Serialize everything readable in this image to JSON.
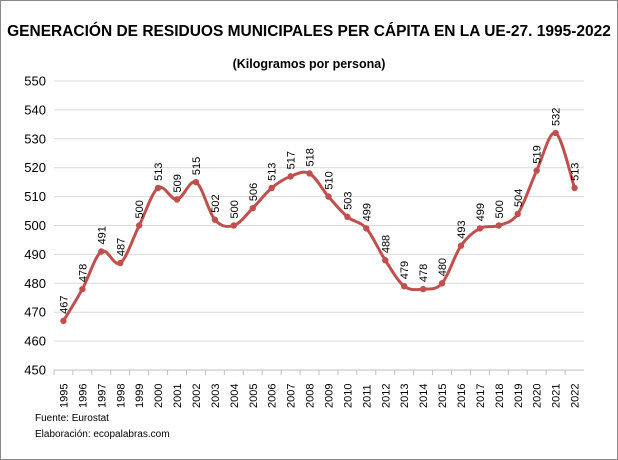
{
  "chart_data": {
    "type": "line",
    "title": "GENERACIÓN DE RESIDUOS MUNICIPALES PER CÁPITA EN LA UE-27. 1995-2022",
    "subtitle": "(Kilogramos por persona)",
    "categories": [
      "1995",
      "1996",
      "1997",
      "1998",
      "1999",
      "2000",
      "2001",
      "2002",
      "2003",
      "2004",
      "2005",
      "2006",
      "2007",
      "2008",
      "2009",
      "2010",
      "2011",
      "2012",
      "2013",
      "2014",
      "2015",
      "2016",
      "2017",
      "2018",
      "2019",
      "2020",
      "2021",
      "2022"
    ],
    "series": [
      {
        "values": [
          467,
          478,
          491,
          487,
          500,
          513,
          509,
          515,
          502,
          500,
          506,
          513,
          517,
          518,
          510,
          503,
          499,
          488,
          479,
          478,
          480,
          493,
          499,
          500,
          504,
          519,
          532,
          513
        ],
        "color": "#c0504d"
      }
    ],
    "ylim": [
      450,
      550
    ],
    "yticks": [
      450,
      460,
      470,
      480,
      490,
      500,
      510,
      520,
      530,
      540,
      550
    ],
    "grid": true,
    "data_labels": true,
    "legend": "none"
  },
  "footer": {
    "source": "Fuente: Eurostat",
    "author": "Elaboración: ecopalabras.com"
  }
}
